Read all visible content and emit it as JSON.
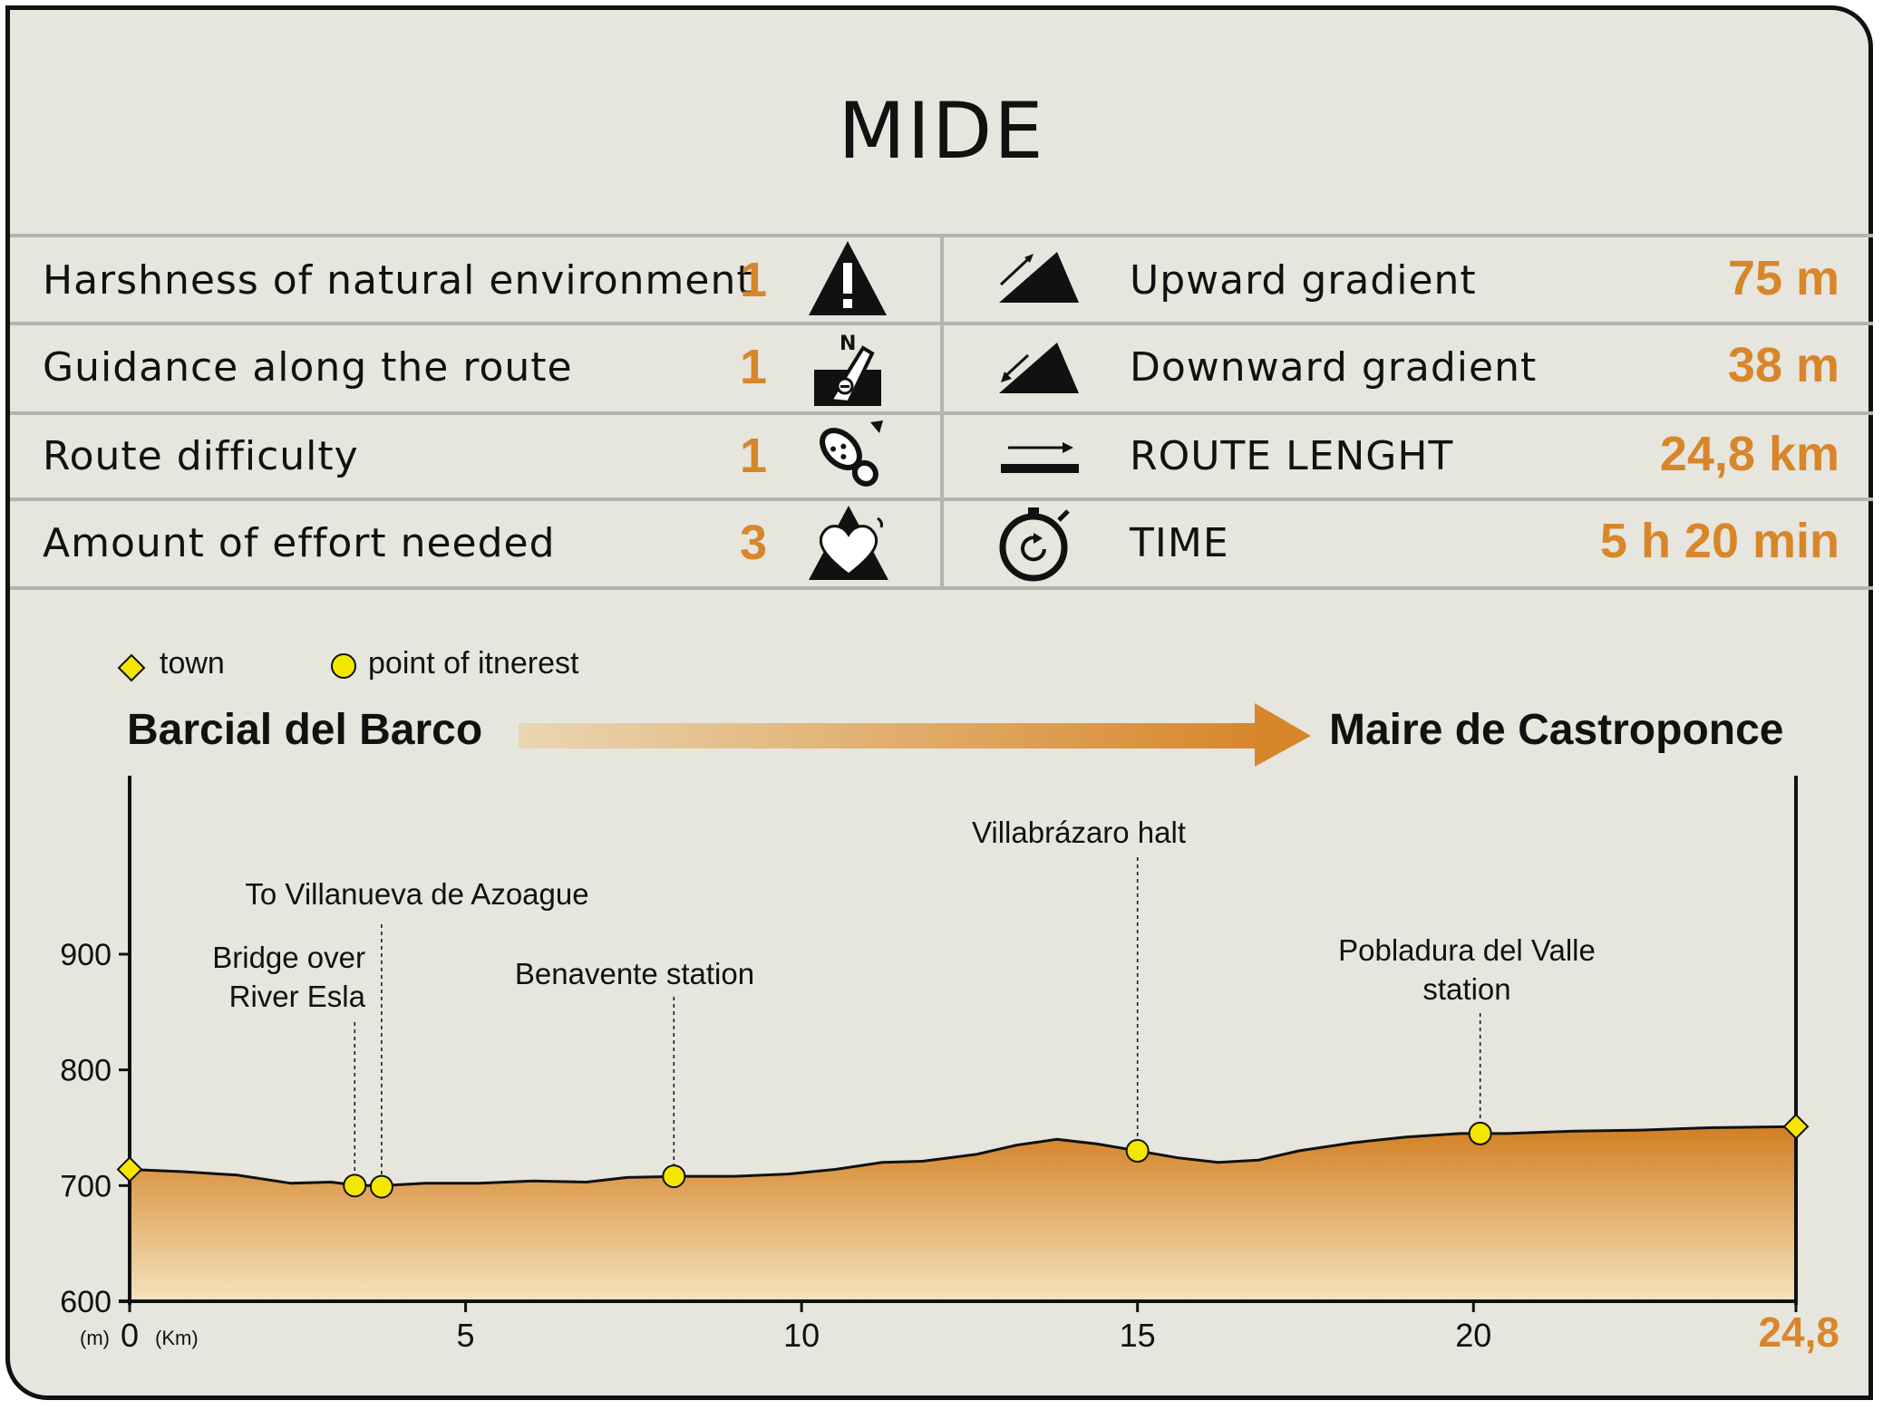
{
  "title": "MIDE",
  "mide_rows": [
    {
      "label": "Harshness of natural environment",
      "value": "1",
      "icon": "warning-mountain-icon"
    },
    {
      "label": "Guidance along the route",
      "value": "1",
      "icon": "compass-signpost-icon"
    },
    {
      "label": "Route difficulty",
      "value": "1",
      "icon": "footprint-icon"
    },
    {
      "label": "Amount of effort needed",
      "value": "3",
      "icon": "heart-mountain-icon"
    }
  ],
  "stats": [
    {
      "label": "Upward gradient",
      "value": "75 m",
      "icon": "uphill-icon"
    },
    {
      "label": "Downward gradient",
      "value": "38 m",
      "icon": "downhill-icon"
    },
    {
      "label": "ROUTE LENGHT",
      "value": "24,8 km",
      "icon": "distance-arrow-icon"
    },
    {
      "label": "TIME",
      "value": "5 h 20 min",
      "icon": "stopwatch-icon"
    }
  ],
  "legend": {
    "town": "town",
    "poi": "point of itnerest"
  },
  "route": {
    "start": "Barcial del Barco",
    "end": "Maire de Castroponce"
  },
  "colors": {
    "accent": "#d8862a",
    "marker": "#f5e600",
    "area_top": "#d27f22",
    "area_bottom": "#f6e3bd",
    "panel": "#e6e6de"
  },
  "chart_data": {
    "type": "area",
    "xlabel": "(Km)",
    "ylabel": "(m)",
    "xlim": [
      0,
      24.8
    ],
    "ylim": [
      600,
      1000
    ],
    "x_ticks": [
      "0",
      "5",
      "10",
      "15",
      "20",
      "24,8"
    ],
    "x_tick_values": [
      0,
      5,
      10,
      15,
      20,
      24.8
    ],
    "y_ticks": [
      "600",
      "700",
      "800",
      "900"
    ],
    "y_tick_values": [
      600,
      700,
      800,
      900
    ],
    "profile": {
      "x": [
        0,
        0.8,
        1.6,
        2.4,
        3.0,
        3.4,
        3.8,
        4.4,
        5.2,
        6.0,
        6.8,
        7.4,
        8.2,
        9.0,
        9.8,
        10.5,
        11.2,
        11.8,
        12.6,
        13.2,
        13.8,
        14.4,
        15.0,
        15.6,
        16.2,
        16.8,
        17.4,
        18.2,
        19.0,
        19.8,
        20.5,
        21.5,
        22.5,
        23.5,
        24.8
      ],
      "y": [
        714,
        712,
        709,
        702,
        703,
        700,
        700,
        702,
        702,
        704,
        703,
        707,
        708,
        708,
        710,
        714,
        720,
        721,
        727,
        735,
        740,
        736,
        730,
        724,
        720,
        722,
        730,
        737,
        742,
        745,
        745,
        747,
        748,
        750,
        751
      ]
    },
    "towns": [
      {
        "x": 0,
        "y": 714
      },
      {
        "x": 24.8,
        "y": 751
      }
    ],
    "points_of_interest": [
      {
        "name": "Bridge over River Esla",
        "x": 3.35,
        "y": 700
      },
      {
        "name": "To Villanueva de Azoague",
        "x": 3.75,
        "y": 699
      },
      {
        "name": "Benavente station",
        "x": 8.1,
        "y": 708
      },
      {
        "name": "Villabrázaro halt",
        "x": 15.0,
        "y": 730
      },
      {
        "name": "Pobladura del Valle station",
        "x": 20.1,
        "y": 745
      }
    ],
    "annotations": [
      {
        "lines": [
          "Bridge over",
          "River Esla"
        ],
        "anchor": "end"
      },
      {
        "lines": [
          "To Villanueva de Azoague"
        ],
        "anchor": "middle"
      },
      {
        "lines": [
          "Benavente station"
        ],
        "anchor": "middle"
      },
      {
        "lines": [
          "Villabrázaro halt"
        ],
        "anchor": "middle"
      },
      {
        "lines": [
          "Pobladura del Valle",
          "station"
        ],
        "anchor": "middle"
      }
    ]
  }
}
